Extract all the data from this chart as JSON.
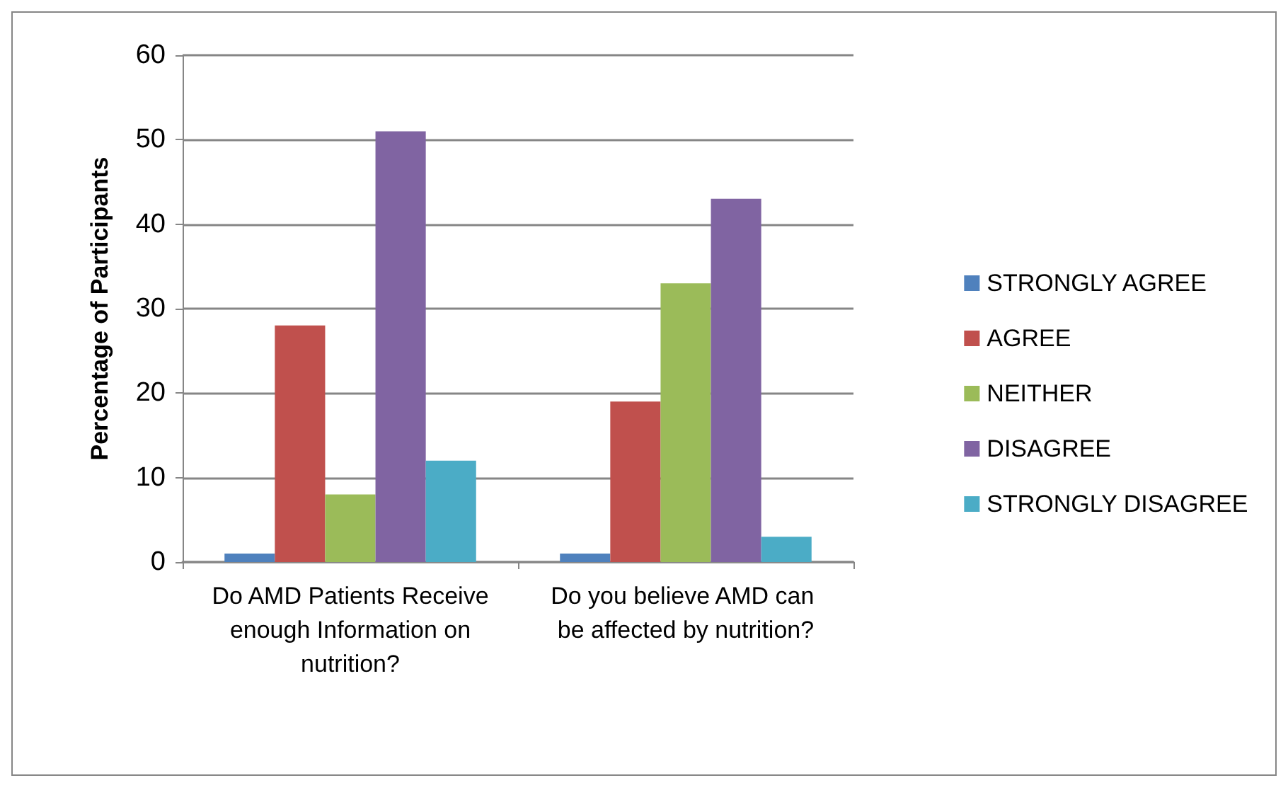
{
  "chart_data": {
    "type": "bar",
    "ylabel": "Percentage of Participants",
    "categories": [
      "Do AMD Patients Receive enough Information on nutrition?",
      "Do you believe AMD can be affected by nutrition?"
    ],
    "series": [
      {
        "name": "STRONGLY AGREE",
        "color": "#4f81bd",
        "values": [
          1,
          1
        ]
      },
      {
        "name": "AGREE",
        "color": "#c0504d",
        "values": [
          28,
          19
        ]
      },
      {
        "name": "NEITHER",
        "color": "#9bbb59",
        "values": [
          8,
          33
        ]
      },
      {
        "name": "DISAGREE",
        "color": "#8064a2",
        "values": [
          51,
          43
        ]
      },
      {
        "name": "STRONGLY DISAGREE",
        "color": "#4bacc6",
        "values": [
          12,
          3
        ]
      }
    ],
    "ylim": [
      0,
      60
    ],
    "yticks": [
      0,
      10,
      20,
      30,
      40,
      50,
      60
    ],
    "grid": "y",
    "legend": "right"
  }
}
